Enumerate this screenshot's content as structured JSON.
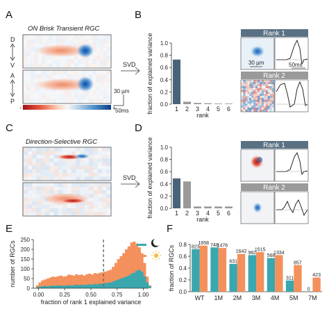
{
  "panels": {
    "A": {
      "letter": "A",
      "title": "ON Brisk Transient RGC",
      "axis_top": [
        "D",
        "V"
      ],
      "axis_bottom": [
        "A",
        "P"
      ],
      "scale_space": "30 µm",
      "scale_time": "50ms",
      "colorbar": {
        "min_label": "-",
        "max_label": "+"
      },
      "arrow_label": "SVD"
    },
    "B": {
      "letter": "B",
      "rank1_header": "Rank 1",
      "rank2_header": "Rank 2",
      "scale_space": "30 µm",
      "scale_time": "50ms"
    },
    "C": {
      "letter": "C",
      "title": "Direction-Selective RGC",
      "arrow_label": "SVD"
    },
    "D": {
      "letter": "D",
      "rank1_header": "Rank 1",
      "rank2_header": "Rank 2"
    },
    "E": {
      "letter": "E"
    },
    "F": {
      "letter": "F"
    }
  },
  "chart_data": [
    {
      "id": "B",
      "type": "bar",
      "categories": [
        "1",
        "2",
        "3",
        "4",
        "5",
        "6"
      ],
      "values": [
        0.73,
        0.04,
        0.02,
        0.015,
        0.01,
        0.01
      ],
      "xlabel": "rank",
      "ylabel": "fraction of explained variance",
      "ylim": [
        0,
        1.0
      ],
      "yticks": [
        "0.0",
        "0.2",
        "0.4",
        "0.6",
        "0.8",
        "1.0"
      ],
      "colors": [
        "#4a6378",
        "#9a9a9a",
        "#9a9a9a",
        "#9a9a9a",
        "#9a9a9a",
        "#9a9a9a"
      ]
    },
    {
      "id": "D",
      "type": "bar",
      "categories": [
        "1",
        "2",
        "3",
        "4",
        "5",
        "6"
      ],
      "values": [
        0.49,
        0.44,
        0.03,
        0.03,
        0.03,
        0.03
      ],
      "xlabel": "rank",
      "ylabel": "fraction of explained variance",
      "ylim": [
        0,
        1.0
      ],
      "yticks": [
        "0.0",
        "0.2",
        "0.4",
        "0.6",
        "0.8",
        "1.0"
      ],
      "colors": [
        "#4a6378",
        "#9a9a9a",
        "#9a9a9a",
        "#9a9a9a",
        "#9a9a9a",
        "#9a9a9a"
      ]
    },
    {
      "id": "E",
      "type": "bar",
      "subtype": "histogram",
      "xlabel": "fraction of rank 1 explained variance",
      "ylabel": "number of RGCs",
      "xlim": [
        -0.05,
        1.05
      ],
      "ylim": [
        0,
        250
      ],
      "xticks": [
        "0.00",
        "0.25",
        "0.50",
        "0.75",
        "1.00"
      ],
      "yticks": [
        "0",
        "50",
        "100",
        "150",
        "200",
        "250"
      ],
      "bin_start": -0.025,
      "bin_width": 0.025,
      "dashed_line_x": 0.62,
      "series": [
        {
          "name": "night",
          "icon": "moon-icon",
          "color": "#3aa7ae",
          "values": [
            5,
            8,
            10,
            12,
            10,
            12,
            14,
            12,
            15,
            14,
            12,
            14,
            16,
            14,
            15,
            18,
            16,
            18,
            16,
            18,
            20,
            18,
            22,
            20,
            24,
            22,
            26,
            28,
            30,
            35,
            40,
            45,
            50,
            55,
            60,
            65,
            75,
            80,
            90,
            95,
            85,
            60,
            30,
            10
          ]
        },
        {
          "name": "day",
          "icon": "sun-icon",
          "color": "#f4905c",
          "values": [
            15,
            30,
            40,
            45,
            50,
            55,
            60,
            58,
            62,
            65,
            60,
            62,
            70,
            68,
            65,
            72,
            68,
            70,
            65,
            72,
            75,
            70,
            78,
            75,
            80,
            82,
            85,
            90,
            95,
            110,
            130,
            150,
            165,
            180,
            200,
            215,
            235,
            240,
            230,
            210,
            180,
            130,
            60,
            15
          ]
        }
      ]
    },
    {
      "id": "F",
      "type": "bar",
      "categories": [
        "WT",
        "1M",
        "2M",
        "3M",
        "4M",
        "5M",
        "7M"
      ],
      "xlabel": "",
      "ylabel": "fraction of RGCs",
      "ylim": [
        0,
        0.8
      ],
      "yticks": [
        "0.0",
        "0.2",
        "0.4",
        "0.6",
        "0.8"
      ],
      "series": [
        {
          "name": "night",
          "color": "#3aa7ae",
          "values": [
            0.72,
            0.75,
            0.47,
            0.62,
            0.57,
            0.19,
            0.0
          ],
          "labels": [
            "823",
            "748",
            "631",
            "982",
            "568",
            "311",
            "0"
          ]
        },
        {
          "name": "day",
          "color": "#f4905c",
          "values": [
            0.78,
            0.74,
            0.64,
            0.67,
            0.62,
            0.45,
            0.24
          ],
          "labels": [
            "1658",
            "1476",
            "1642",
            "1515",
            "1334",
            "857",
            "423"
          ]
        }
      ]
    }
  ]
}
